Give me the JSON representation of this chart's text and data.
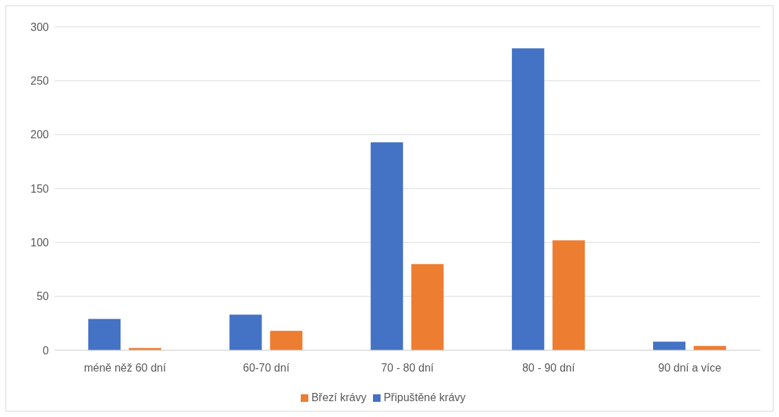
{
  "chart_data": {
    "type": "bar",
    "categories": [
      "méně něž 60 dní",
      "60-70 dní",
      "70 - 80 dní",
      "80 - 90 dní",
      "90 dní a více"
    ],
    "series": [
      {
        "name": "Připuštěné krávy",
        "color": "#4472c4",
        "values": [
          29,
          33,
          193,
          280,
          8
        ]
      },
      {
        "name": "Březí krávy",
        "color": "#ed7d31",
        "values": [
          2,
          18,
          80,
          102,
          4
        ]
      }
    ],
    "ylim": [
      0,
      300
    ],
    "yticks": [
      0,
      50,
      100,
      150,
      200,
      250,
      300
    ],
    "grid": "y",
    "legend": "bottom"
  }
}
